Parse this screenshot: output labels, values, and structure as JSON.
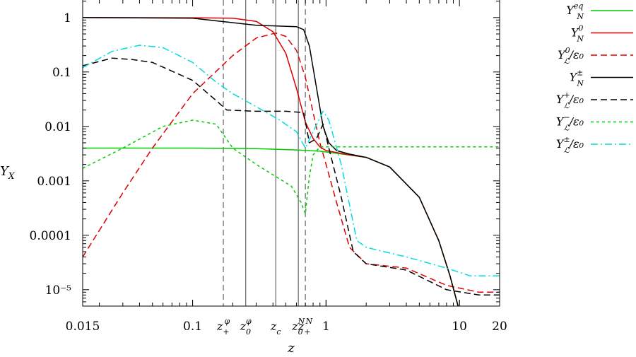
{
  "chart_data": {
    "type": "line",
    "xlabel": "z",
    "ylabel": "Y_X",
    "x_scale": "log",
    "y_scale": "log",
    "xlim": [
      0.015,
      20
    ],
    "ylim": [
      5e-06,
      2.1
    ],
    "grid": false,
    "legend_position": "right outside",
    "x_ticks": [
      {
        "value": 0.015,
        "label": "0.015"
      },
      {
        "value": 0.1,
        "label": "0.1"
      },
      {
        "value": 1,
        "label": "1"
      },
      {
        "value": 10,
        "label": "10"
      },
      {
        "value": 20,
        "label": "20"
      }
    ],
    "y_ticks": [
      {
        "value": 1,
        "label": "1"
      },
      {
        "value": 0.1,
        "label": "0.1"
      },
      {
        "value": 0.01,
        "label": "0.01"
      },
      {
        "value": 0.001,
        "label": "0.001"
      },
      {
        "value": 0.0001,
        "label": "0.0001"
      },
      {
        "value": 1e-05,
        "label": "10⁻⁵"
      }
    ],
    "vertical_markers": [
      {
        "label": "z₊ᵠ",
        "x": 0.17,
        "style": "dashed"
      },
      {
        "label": "z₀ᵠ",
        "x": 0.25,
        "style": "solid"
      },
      {
        "label": "z꜀",
        "x": 0.42,
        "style": "solid"
      },
      {
        "label": "z₀ᴺ",
        "x": 0.62,
        "style": "solid"
      },
      {
        "label": "z₊ᴺ",
        "x": 0.7,
        "style": "dashed"
      }
    ],
    "series": [
      {
        "name": "Y_N^eq",
        "color": "#00cc00",
        "dash": "solid",
        "points": [
          [
            0.015,
            0.004
          ],
          [
            0.1,
            0.004
          ],
          [
            0.3,
            0.0039
          ],
          [
            0.6,
            0.0037
          ],
          [
            0.9,
            0.0035
          ],
          [
            1.2,
            0.0032
          ],
          [
            2,
            0.0027
          ],
          [
            3,
            0.0018
          ],
          [
            5,
            0.0005
          ],
          [
            7,
            8e-05
          ],
          [
            8.5,
            1.8e-05
          ],
          [
            10,
            4e-06
          ]
        ]
      },
      {
        "name": "Y_N^0",
        "color": "#dd0000",
        "dash": "solid",
        "points": [
          [
            0.015,
            1
          ],
          [
            0.1,
            0.99
          ],
          [
            0.2,
            0.97
          ],
          [
            0.3,
            0.85
          ],
          [
            0.4,
            0.55
          ],
          [
            0.5,
            0.22
          ],
          [
            0.6,
            0.05
          ],
          [
            0.7,
            0.012
          ],
          [
            0.8,
            0.006
          ],
          [
            0.9,
            0.0042
          ],
          [
            1,
            0.0036
          ],
          [
            1.5,
            0.003
          ],
          [
            2,
            0.0027
          ],
          [
            3,
            0.0018
          ],
          [
            5,
            0.0005
          ],
          [
            7,
            8e-05
          ],
          [
            8.5,
            1.8e-05
          ],
          [
            10,
            4e-06
          ]
        ]
      },
      {
        "name": "Y_L^0/ε0",
        "color": "#dd0000",
        "dash": "dashed",
        "points": [
          [
            0.015,
            4e-05
          ],
          [
            0.03,
            0.0006
          ],
          [
            0.05,
            0.004
          ],
          [
            0.1,
            0.04
          ],
          [
            0.2,
            0.2
          ],
          [
            0.3,
            0.42
          ],
          [
            0.42,
            0.52
          ],
          [
            0.5,
            0.45
          ],
          [
            0.6,
            0.25
          ],
          [
            0.7,
            0.08
          ],
          [
            0.8,
            0.018
          ],
          [
            0.9,
            0.005
          ],
          [
            1,
            0.002
          ],
          [
            1.2,
            0.0004
          ],
          [
            1.5,
            6e-05
          ],
          [
            2,
            3e-05
          ],
          [
            4,
            2.5e-05
          ],
          [
            8,
            1.2e-05
          ],
          [
            14,
            9e-06
          ],
          [
            20,
            9e-06
          ]
        ]
      },
      {
        "name": "Y_N^±",
        "color": "#000000",
        "dash": "solid",
        "points": [
          [
            0.015,
            1
          ],
          [
            0.1,
            0.97
          ],
          [
            0.3,
            0.72
          ],
          [
            0.6,
            0.68
          ],
          [
            0.68,
            0.6
          ],
          [
            0.75,
            0.3
          ],
          [
            0.85,
            0.05
          ],
          [
            0.95,
            0.01
          ],
          [
            1.05,
            0.005
          ],
          [
            1.2,
            0.0036
          ],
          [
            1.5,
            0.0031
          ],
          [
            2,
            0.0027
          ],
          [
            3,
            0.0018
          ],
          [
            5,
            0.0005
          ],
          [
            7,
            8e-05
          ],
          [
            8.5,
            1.8e-05
          ],
          [
            10,
            4e-06
          ]
        ]
      },
      {
        "name": "Y_L^+/ε0",
        "color": "#000000",
        "dash": "dashed",
        "points": [
          [
            0.015,
            0.13
          ],
          [
            0.025,
            0.18
          ],
          [
            0.035,
            0.17
          ],
          [
            0.05,
            0.15
          ],
          [
            0.1,
            0.07
          ],
          [
            0.15,
            0.03
          ],
          [
            0.18,
            0.02
          ],
          [
            0.3,
            0.019
          ],
          [
            0.5,
            0.019
          ],
          [
            0.68,
            0.018
          ],
          [
            0.75,
            0.005
          ],
          [
            0.85,
            0.006
          ],
          [
            0.95,
            0.011
          ],
          [
            1.05,
            0.004
          ],
          [
            1.3,
            0.0005
          ],
          [
            1.6,
            5e-05
          ],
          [
            2,
            3e-05
          ],
          [
            4,
            2.3e-05
          ],
          [
            8,
            1e-05
          ],
          [
            14,
            8e-06
          ],
          [
            20,
            8e-06
          ]
        ]
      },
      {
        "name": "Y_L^-/ε0",
        "color": "#00cc00",
        "dash": "dotted",
        "points": [
          [
            0.015,
            0.0017
          ],
          [
            0.03,
            0.004
          ],
          [
            0.06,
            0.01
          ],
          [
            0.1,
            0.013
          ],
          [
            0.15,
            0.011
          ],
          [
            0.2,
            0.004
          ],
          [
            0.3,
            0.002
          ],
          [
            0.42,
            0.0012
          ],
          [
            0.55,
            0.0008
          ],
          [
            0.65,
            0.0004
          ],
          [
            0.7,
            0.00025
          ],
          [
            0.75,
            0.0012
          ],
          [
            0.8,
            0.003
          ],
          [
            0.9,
            0.0042
          ],
          [
            1.2,
            0.0042
          ],
          [
            20,
            0.0042
          ]
        ]
      },
      {
        "name": "Y_L^±/ε0",
        "color": "#00dddd",
        "dash": "dashdot",
        "points": [
          [
            0.015,
            0.12
          ],
          [
            0.025,
            0.24
          ],
          [
            0.04,
            0.31
          ],
          [
            0.06,
            0.28
          ],
          [
            0.1,
            0.15
          ],
          [
            0.15,
            0.065
          ],
          [
            0.2,
            0.04
          ],
          [
            0.3,
            0.023
          ],
          [
            0.45,
            0.013
          ],
          [
            0.6,
            0.008
          ],
          [
            0.7,
            0.004
          ],
          [
            0.8,
            0.008
          ],
          [
            0.95,
            0.019
          ],
          [
            1.05,
            0.013
          ],
          [
            1.3,
            0.002
          ],
          [
            1.7,
            8e-05
          ],
          [
            2,
            6e-05
          ],
          [
            4,
            4e-05
          ],
          [
            8,
            2.5e-05
          ],
          [
            12,
            1.8e-05
          ],
          [
            20,
            1.8e-05
          ]
        ]
      }
    ]
  },
  "legend": [
    {
      "base": "Y",
      "sub": "N",
      "sup": "eq",
      "suffix": ""
    },
    {
      "base": "Y",
      "sub": "N",
      "sup": "0",
      "suffix": ""
    },
    {
      "base": "Y",
      "sub": "ℒ",
      "sup": "0",
      "suffix": "/ε₀"
    },
    {
      "base": "Y",
      "sub": "N",
      "sup": "±",
      "suffix": ""
    },
    {
      "base": "Y",
      "sub": "ℒ",
      "sup": "+",
      "suffix": "/ε₀"
    },
    {
      "base": "Y",
      "sub": "ℒ",
      "sup": "−",
      "suffix": "/ε₀"
    },
    {
      "base": "Y",
      "sub": "ℒ",
      "sup": "±",
      "suffix": "/ε₀"
    }
  ]
}
